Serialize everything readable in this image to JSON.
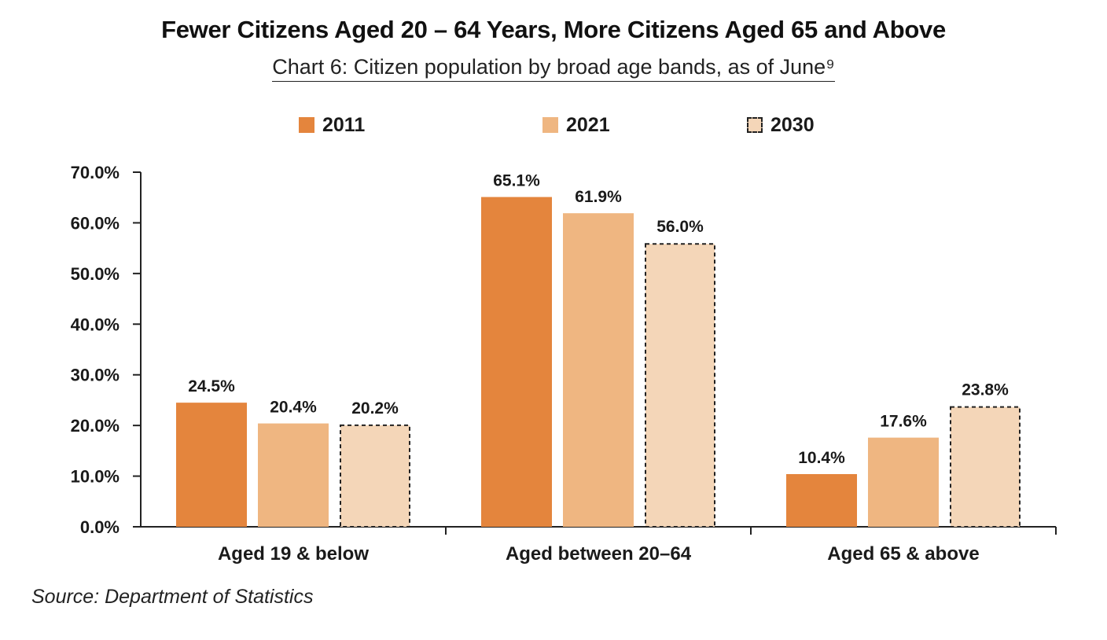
{
  "header": {
    "title": "Fewer Citizens Aged 20 – 64 Years, More Citizens Aged 65 and Above",
    "subtitle": "Chart 6: Citizen population by broad age bands, as of June⁹"
  },
  "footer": {
    "source": "Source: Department of Statistics"
  },
  "chart_data": {
    "type": "bar",
    "categories": [
      "Aged 19 & below",
      "Aged between 20–64",
      "Aged 65 & above"
    ],
    "series": [
      {
        "name": "2011",
        "values": [
          24.5,
          65.1,
          10.4
        ],
        "labels": [
          "24.5%",
          "65.1%",
          "10.4%"
        ],
        "color": "#e4853d",
        "style": "solid"
      },
      {
        "name": "2021",
        "values": [
          20.4,
          61.9,
          17.6
        ],
        "labels": [
          "20.4%",
          "61.9%",
          "17.6%"
        ],
        "color": "#efb681",
        "style": "solid"
      },
      {
        "name": "2030",
        "values": [
          20.2,
          56.0,
          23.8
        ],
        "labels": [
          "20.2%",
          "56.0%",
          "23.8%"
        ],
        "color": "#f4d6b8",
        "style": "dashed-outline"
      }
    ],
    "y_ticks": [
      "0.0%",
      "10.0%",
      "20.0%",
      "30.0%",
      "40.0%",
      "50.0%",
      "60.0%",
      "70.0%"
    ],
    "ylim": [
      0,
      70
    ],
    "grid": false,
    "legend_position": "top-center"
  }
}
